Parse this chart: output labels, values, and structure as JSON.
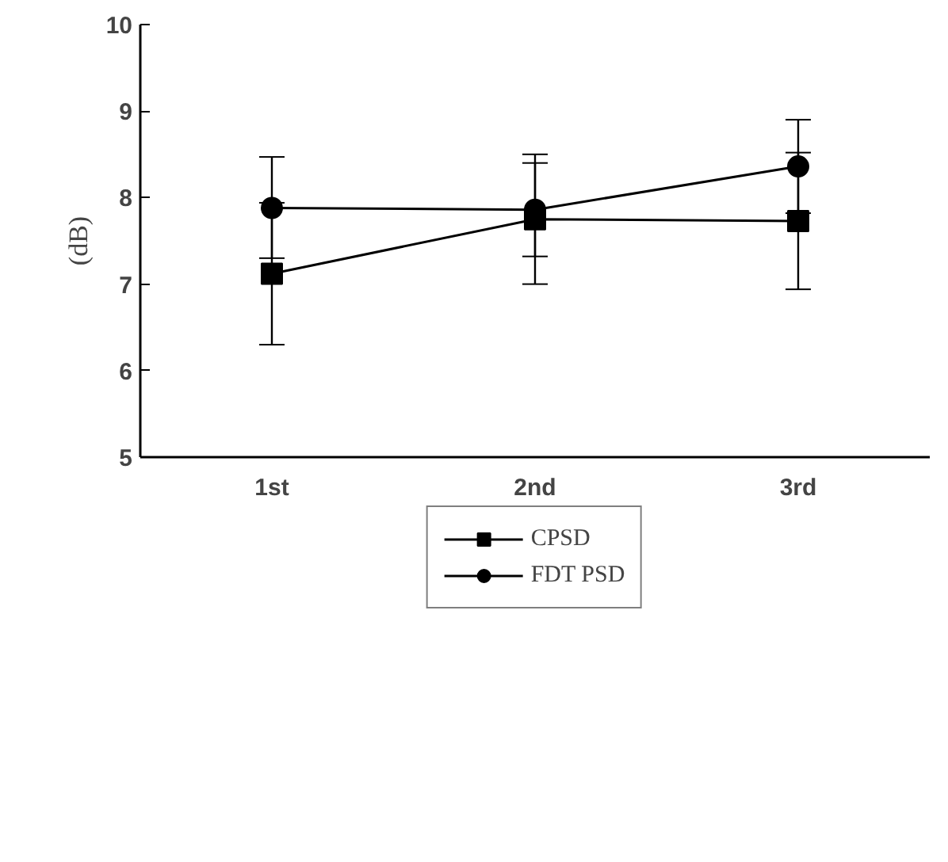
{
  "chart_data": {
    "type": "line",
    "ylabel": "(dB)",
    "categories": [
      "1st",
      "2nd",
      "3rd"
    ],
    "ylim": [
      5,
      10
    ],
    "yticks": [
      5,
      6,
      7,
      8,
      9,
      10
    ],
    "grid": false,
    "legend": "bottom",
    "line_style": "solid",
    "series": [
      {
        "name": "CPSD",
        "color": "#000000",
        "marker": "square",
        "values": [
          7.12,
          7.75,
          7.73
        ],
        "errors": [
          [
            6.3,
            7.94
          ],
          [
            7.0,
            8.5
          ],
          [
            6.94,
            8.52
          ]
        ]
      },
      {
        "name": "FDT PSD",
        "color": "#000000",
        "marker": "circle",
        "values": [
          7.88,
          7.86,
          8.36
        ],
        "errors": [
          [
            7.3,
            8.47
          ],
          [
            7.32,
            8.4
          ],
          [
            7.82,
            8.9
          ]
        ]
      }
    ]
  }
}
